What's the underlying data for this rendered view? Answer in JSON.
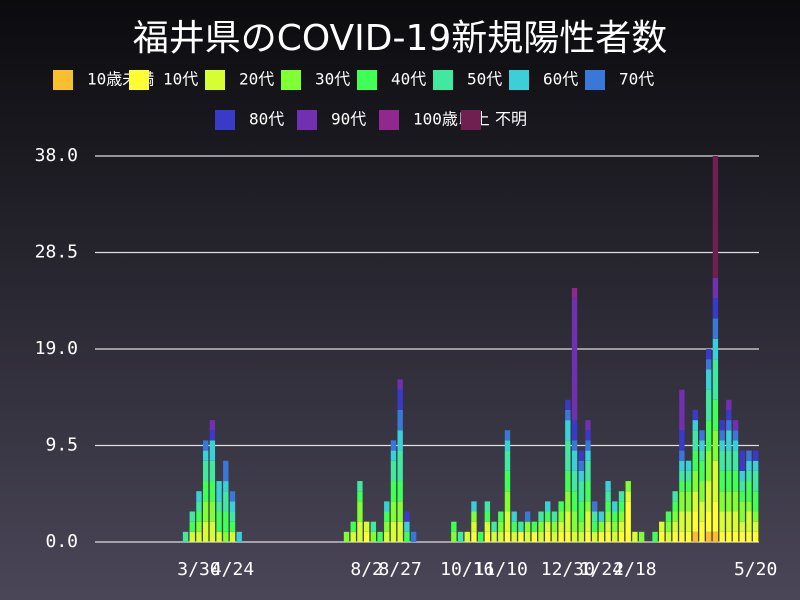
{
  "chart_data": {
    "type": "stacked_bar",
    "title": "福井県のCOVID-19新規陽性者数",
    "categories": [
      null,
      null,
      null,
      null,
      null,
      null,
      null,
      null,
      null,
      null,
      null,
      null,
      null,
      null,
      null,
      "3/30",
      null,
      null,
      null,
      null,
      "4/24",
      null,
      null,
      null,
      null,
      null,
      null,
      null,
      null,
      null,
      null,
      null,
      null,
      null,
      null,
      null,
      null,
      null,
      null,
      null,
      "8/2",
      null,
      null,
      null,
      null,
      "8/27",
      null,
      null,
      null,
      null,
      null,
      null,
      null,
      null,
      null,
      "10/16",
      null,
      null,
      null,
      null,
      "11/10",
      null,
      null,
      null,
      null,
      null,
      null,
      null,
      null,
      null,
      "12/30",
      null,
      null,
      null,
      null,
      "1/24",
      null,
      null,
      null,
      null,
      "2/18",
      null,
      null,
      null,
      null,
      null,
      null,
      null,
      null,
      null,
      null,
      null,
      null,
      null,
      null,
      null,
      null,
      null,
      "5/20"
    ],
    "ylim": [
      0,
      38
    ],
    "yticks": [
      {
        "value": 0,
        "label": "0.0"
      },
      9.5,
      {
        "value": 19,
        "label": "19.0"
      },
      28.5,
      {
        "value": 38,
        "label": "38.0"
      }
    ],
    "grid": true,
    "series": [
      {
        "name": "10歳未満",
        "color": "#f9bf2e",
        "values": [
          0,
          0,
          0,
          0,
          0,
          0,
          0,
          0,
          0,
          0,
          0,
          0,
          0,
          0,
          0,
          0,
          0,
          0,
          0,
          0,
          0,
          0,
          0,
          0,
          0,
          0,
          0,
          0,
          0,
          0,
          0,
          0,
          0,
          0,
          0,
          0,
          0,
          0,
          0,
          0,
          0,
          0,
          0,
          0,
          0,
          0,
          0,
          0,
          0,
          0,
          0,
          0,
          0,
          0,
          0,
          0,
          0,
          0,
          0,
          0,
          0,
          0,
          0,
          0,
          0,
          0,
          0,
          0,
          0,
          0,
          0,
          0,
          0,
          0,
          0,
          0,
          0,
          0,
          0,
          0,
          0,
          0,
          0,
          0,
          0,
          0,
          0,
          0,
          0,
          1,
          0,
          1,
          1,
          0,
          0,
          0,
          0,
          0,
          0
        ]
      },
      {
        "name": "10代",
        "color": "#ffff33",
        "values": [
          0,
          0,
          0,
          0,
          0,
          0,
          0,
          0,
          0,
          0,
          0,
          0,
          0,
          0,
          0,
          0,
          0,
          0,
          0,
          0,
          0,
          0,
          0,
          0,
          0,
          0,
          0,
          0,
          0,
          0,
          0,
          0,
          0,
          0,
          0,
          0,
          0,
          0,
          0,
          0,
          1,
          0,
          0,
          0,
          0,
          0,
          0,
          0,
          0,
          0,
          0,
          0,
          0,
          0,
          0,
          0,
          1,
          0,
          1,
          0,
          0,
          1,
          0,
          1,
          0,
          1,
          0,
          1,
          0,
          1,
          1,
          0,
          0,
          1,
          0,
          1,
          1,
          0,
          1,
          4,
          0,
          0,
          0,
          0,
          1,
          0,
          1,
          1,
          1,
          2,
          2,
          2,
          3,
          1,
          1,
          1,
          1,
          1,
          1
        ]
      },
      {
        "name": "20代",
        "color": "#d6ff33",
        "values": [
          0,
          0,
          0,
          0,
          0,
          0,
          0,
          0,
          0,
          0,
          0,
          0,
          0,
          0,
          1,
          1,
          2,
          2,
          1,
          0,
          1,
          0,
          0,
          0,
          0,
          0,
          0,
          0,
          0,
          0,
          0,
          0,
          0,
          0,
          0,
          0,
          0,
          0,
          1,
          2,
          1,
          0,
          0,
          1,
          2,
          2,
          0,
          0,
          0,
          0,
          0,
          0,
          0,
          0,
          0,
          1,
          1,
          0,
          1,
          1,
          1,
          2,
          1,
          0,
          1,
          0,
          1,
          1,
          1,
          1,
          2,
          1,
          1,
          2,
          1,
          0,
          1,
          1,
          1,
          1,
          1,
          0,
          0,
          0,
          1,
          1,
          1,
          2,
          2,
          2,
          2,
          3,
          4,
          2,
          2,
          2,
          1,
          2,
          1
        ]
      },
      {
        "name": "30代",
        "color": "#80ff33",
        "values": [
          0,
          0,
          0,
          0,
          0,
          0,
          0,
          0,
          0,
          0,
          0,
          0,
          0,
          0,
          0,
          1,
          2,
          2,
          0,
          1,
          0,
          0,
          0,
          0,
          0,
          0,
          0,
          0,
          0,
          0,
          0,
          0,
          0,
          0,
          0,
          0,
          0,
          1,
          0,
          2,
          0,
          1,
          0,
          1,
          2,
          2,
          0,
          0,
          0,
          0,
          0,
          0,
          0,
          1,
          0,
          0,
          1,
          0,
          0,
          0,
          1,
          2,
          0,
          0,
          1,
          0,
          1,
          0,
          1,
          1,
          2,
          2,
          1,
          1,
          0,
          1,
          1,
          1,
          1,
          1,
          0,
          1,
          0,
          0,
          0,
          1,
          1,
          2,
          2,
          2,
          2,
          3,
          3,
          2,
          2,
          2,
          2,
          1,
          1
        ]
      },
      {
        "name": "40代",
        "color": "#40ff55",
        "values": [
          0,
          0,
          0,
          0,
          0,
          0,
          0,
          0,
          0,
          0,
          0,
          0,
          0,
          0,
          1,
          1,
          2,
          2,
          2,
          2,
          1,
          0,
          0,
          0,
          0,
          0,
          0,
          0,
          0,
          0,
          0,
          0,
          0,
          0,
          0,
          0,
          0,
          0,
          1,
          1,
          0,
          0,
          1,
          1,
          2,
          2,
          1,
          0,
          0,
          0,
          0,
          0,
          0,
          1,
          0,
          0,
          0,
          1,
          1,
          0,
          1,
          2,
          1,
          0,
          0,
          1,
          0,
          1,
          0,
          1,
          2,
          2,
          2,
          2,
          1,
          0,
          1,
          1,
          1,
          0,
          0,
          0,
          0,
          1,
          0,
          1,
          1,
          1,
          1,
          2,
          2,
          3,
          3,
          2,
          2,
          2,
          1,
          2,
          2
        ]
      },
      {
        "name": "50代",
        "color": "#40e8a0",
        "values": [
          0,
          0,
          0,
          0,
          0,
          0,
          0,
          0,
          0,
          0,
          0,
          0,
          0,
          1,
          1,
          1,
          2,
          2,
          1,
          2,
          1,
          0,
          0,
          0,
          0,
          0,
          0,
          0,
          0,
          0,
          0,
          0,
          0,
          0,
          0,
          0,
          0,
          0,
          0,
          1,
          0,
          1,
          0,
          0,
          2,
          3,
          0,
          0,
          0,
          0,
          0,
          0,
          0,
          0,
          1,
          0,
          0,
          0,
          1,
          1,
          0,
          2,
          0,
          1,
          0,
          0,
          1,
          0,
          1,
          0,
          3,
          2,
          2,
          2,
          1,
          0,
          1,
          0,
          1,
          0,
          0,
          0,
          0,
          0,
          0,
          0,
          1,
          1,
          1,
          2,
          1,
          3,
          4,
          2,
          2,
          2,
          1,
          1,
          2
        ]
      },
      {
        "name": "60代",
        "color": "#3bd0d8",
        "values": [
          0,
          0,
          0,
          0,
          0,
          0,
          0,
          0,
          0,
          0,
          0,
          0,
          0,
          0,
          0,
          1,
          1,
          2,
          2,
          1,
          1,
          1,
          0,
          0,
          0,
          0,
          0,
          0,
          0,
          0,
          0,
          0,
          0,
          0,
          0,
          0,
          0,
          0,
          0,
          0,
          0,
          0,
          0,
          1,
          1,
          2,
          1,
          0,
          0,
          0,
          0,
          0,
          0,
          0,
          0,
          0,
          1,
          0,
          0,
          0,
          0,
          1,
          1,
          0,
          0,
          0,
          0,
          1,
          0,
          0,
          2,
          2,
          1,
          1,
          0,
          1,
          1,
          1,
          0,
          0,
          0,
          0,
          0,
          0,
          0,
          0,
          0,
          1,
          1,
          1,
          1,
          2,
          2,
          1,
          2,
          1,
          1,
          1,
          1
        ]
      },
      {
        "name": "70代",
        "color": "#3a78d8",
        "values": [
          0,
          0,
          0,
          0,
          0,
          0,
          0,
          0,
          0,
          0,
          0,
          0,
          0,
          0,
          0,
          0,
          1,
          0,
          0,
          2,
          1,
          0,
          0,
          0,
          0,
          0,
          0,
          0,
          0,
          0,
          0,
          0,
          0,
          0,
          0,
          0,
          0,
          0,
          0,
          0,
          0,
          0,
          0,
          0,
          1,
          2,
          0,
          1,
          0,
          0,
          0,
          0,
          0,
          0,
          0,
          0,
          0,
          0,
          0,
          0,
          0,
          1,
          0,
          0,
          1,
          0,
          0,
          0,
          0,
          0,
          1,
          1,
          1,
          1,
          1,
          0,
          0,
          0,
          0,
          0,
          0,
          0,
          0,
          0,
          0,
          0,
          0,
          1,
          0,
          0,
          1,
          1,
          2,
          1,
          1,
          1,
          0,
          1,
          0
        ]
      },
      {
        "name": "80代",
        "color": "#3a3ac8",
        "values": [
          0,
          0,
          0,
          0,
          0,
          0,
          0,
          0,
          0,
          0,
          0,
          0,
          0,
          0,
          0,
          0,
          0,
          1,
          0,
          0,
          0,
          0,
          0,
          0,
          0,
          0,
          0,
          0,
          0,
          0,
          0,
          0,
          0,
          0,
          0,
          0,
          0,
          0,
          0,
          0,
          0,
          0,
          0,
          0,
          0,
          2,
          1,
          0,
          0,
          0,
          0,
          0,
          0,
          0,
          0,
          0,
          0,
          0,
          0,
          0,
          0,
          0,
          0,
          0,
          0,
          0,
          0,
          0,
          0,
          0,
          1,
          2,
          1,
          1,
          0,
          0,
          0,
          0,
          0,
          0,
          0,
          0,
          0,
          0,
          0,
          0,
          0,
          2,
          0,
          1,
          0,
          1,
          2,
          1,
          1,
          0,
          2,
          0,
          1
        ]
      },
      {
        "name": "90代",
        "color": "#7030b0",
        "values": [
          0,
          0,
          0,
          0,
          0,
          0,
          0,
          0,
          0,
          0,
          0,
          0,
          0,
          0,
          0,
          0,
          0,
          1,
          0,
          0,
          0,
          0,
          0,
          0,
          0,
          0,
          0,
          0,
          0,
          0,
          0,
          0,
          0,
          0,
          0,
          0,
          0,
          0,
          0,
          0,
          0,
          0,
          0,
          0,
          0,
          1,
          0,
          0,
          0,
          0,
          0,
          0,
          0,
          0,
          0,
          0,
          0,
          0,
          0,
          0,
          0,
          0,
          0,
          0,
          0,
          0,
          0,
          0,
          0,
          0,
          0,
          12,
          0,
          1,
          0,
          0,
          0,
          0,
          0,
          0,
          0,
          0,
          0,
          0,
          0,
          0,
          0,
          4,
          0,
          0,
          0,
          0,
          2,
          0,
          1,
          1,
          0,
          0,
          0
        ]
      },
      {
        "name": "100歳以上",
        "color": "#902890",
        "values": [
          0,
          0,
          0,
          0,
          0,
          0,
          0,
          0,
          0,
          0,
          0,
          0,
          0,
          0,
          0,
          0,
          0,
          0,
          0,
          0,
          0,
          0,
          0,
          0,
          0,
          0,
          0,
          0,
          0,
          0,
          0,
          0,
          0,
          0,
          0,
          0,
          0,
          0,
          0,
          0,
          0,
          0,
          0,
          0,
          0,
          0,
          0,
          0,
          0,
          0,
          0,
          0,
          0,
          0,
          0,
          0,
          0,
          0,
          0,
          0,
          0,
          0,
          0,
          0,
          0,
          0,
          0,
          0,
          0,
          0,
          0,
          1,
          0,
          0,
          0,
          0,
          0,
          0,
          0,
          0,
          0,
          0,
          0,
          0,
          0,
          0,
          0,
          0,
          0,
          0,
          0,
          0,
          0,
          0,
          0,
          0,
          0,
          0,
          0
        ]
      },
      {
        "name": "不明",
        "color": "#702050",
        "values": [
          0,
          0,
          0,
          0,
          0,
          0,
          0,
          0,
          0,
          0,
          0,
          0,
          0,
          0,
          0,
          0,
          0,
          0,
          0,
          0,
          0,
          0,
          0,
          0,
          0,
          0,
          0,
          0,
          0,
          0,
          0,
          0,
          0,
          0,
          0,
          0,
          0,
          0,
          0,
          0,
          0,
          0,
          0,
          0,
          0,
          0,
          0,
          0,
          0,
          0,
          0,
          0,
          0,
          0,
          0,
          0,
          0,
          0,
          0,
          0,
          0,
          0,
          0,
          0,
          0,
          0,
          0,
          0,
          0,
          0,
          0,
          0,
          0,
          0,
          0,
          0,
          0,
          0,
          0,
          0,
          0,
          0,
          0,
          0,
          0,
          0,
          0,
          0,
          0,
          0,
          0,
          0,
          12,
          0,
          0,
          0,
          0,
          0,
          0
        ]
      }
    ]
  }
}
